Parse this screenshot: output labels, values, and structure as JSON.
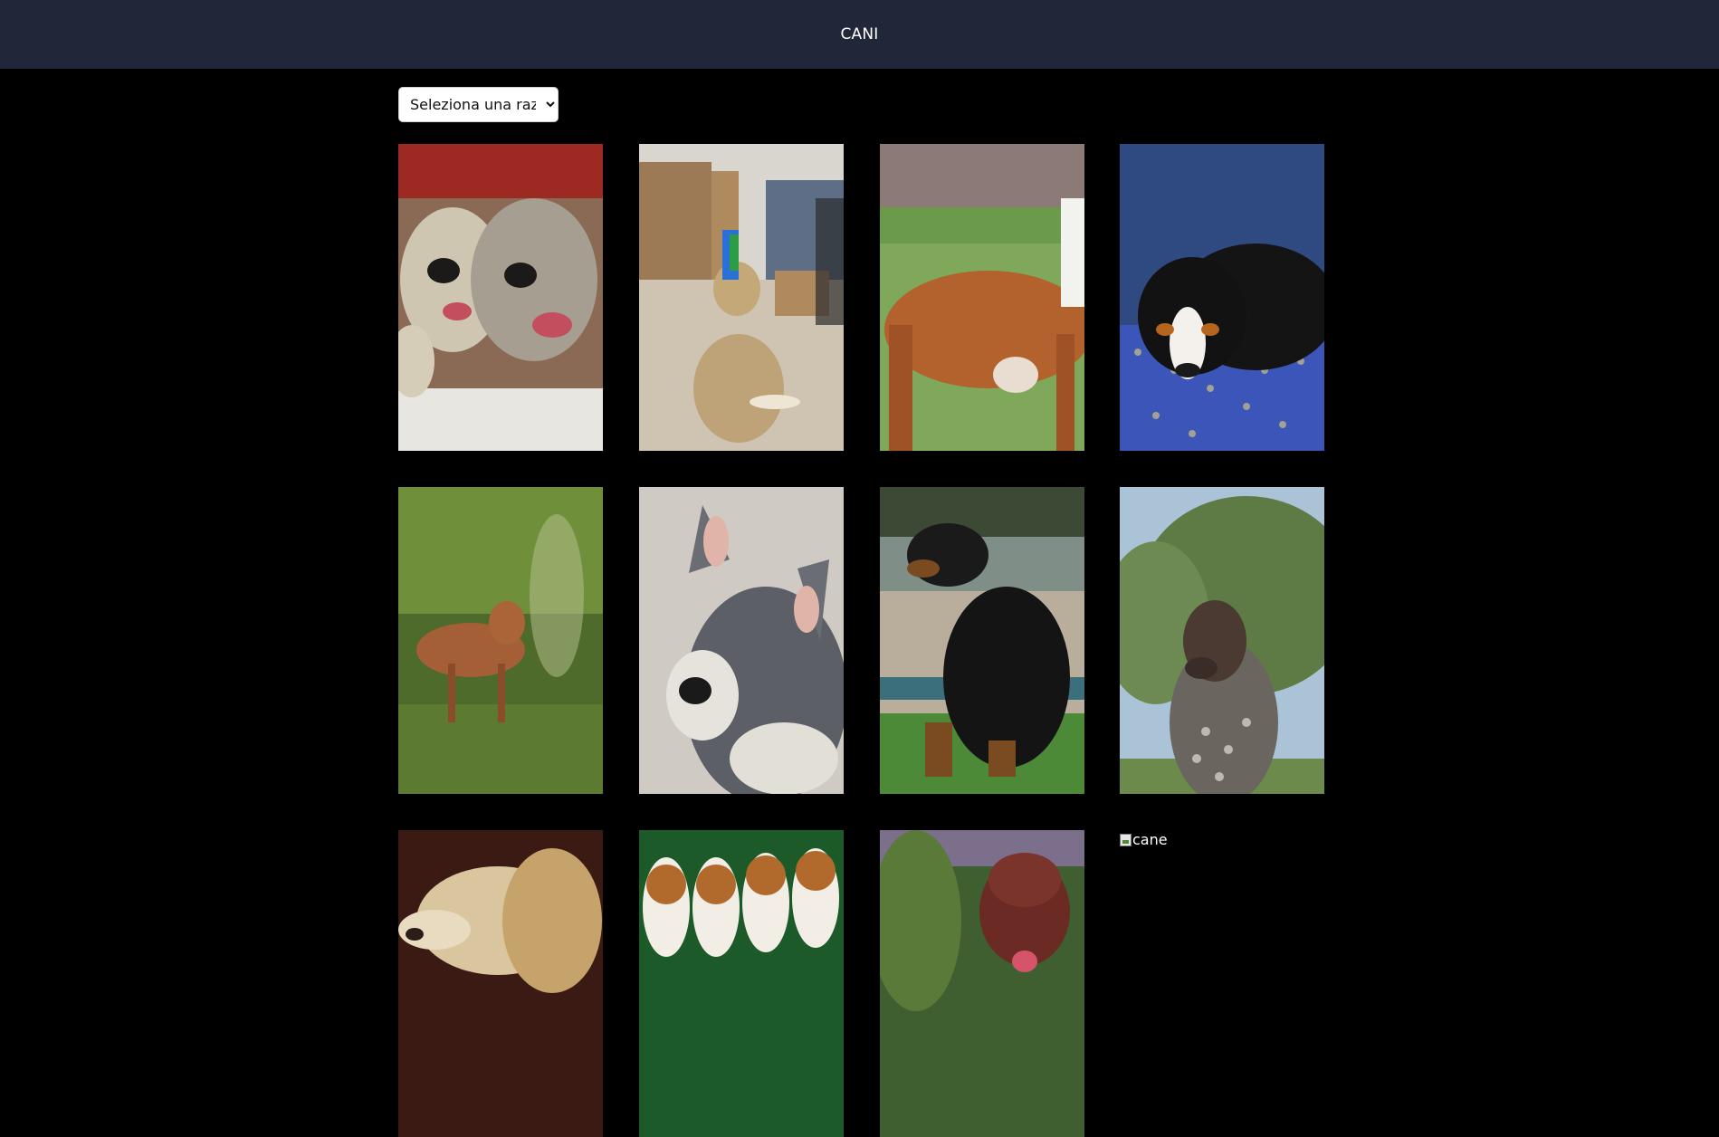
{
  "header": {
    "title": "CANI"
  },
  "breed_select": {
    "selected": "Seleziona una razza"
  },
  "gallery": {
    "images": [
      {
        "alt": "cane",
        "subject": "irish-wolfhounds"
      },
      {
        "alt": "cane",
        "subject": "briard-in-shop"
      },
      {
        "alt": "cane",
        "subject": "boxer-body"
      },
      {
        "alt": "cane",
        "subject": "swiss-mountain-puppy"
      },
      {
        "alt": "cane",
        "subject": "dhole-in-grass"
      },
      {
        "alt": "cane",
        "subject": "miniature-schnauzer"
      },
      {
        "alt": "cane",
        "subject": "black-and-tan-hound"
      },
      {
        "alt": "cane",
        "subject": "german-shorthaired-pointer"
      },
      {
        "alt": "cane",
        "subject": "saluki"
      },
      {
        "alt": "cane",
        "subject": "beagle-puppies"
      },
      {
        "alt": "cane",
        "subject": "bloodhound"
      }
    ],
    "broken_image_alt": "cane"
  }
}
